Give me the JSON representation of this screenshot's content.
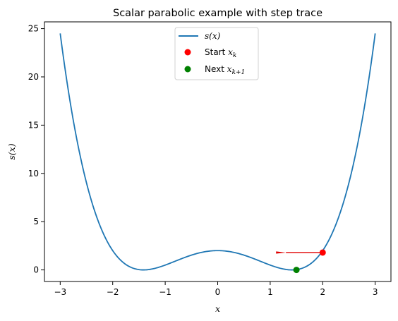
{
  "chart_data": {
    "type": "line",
    "title": "Scalar parabolic example with step trace",
    "xlabel": "x",
    "ylabel": "s(x)",
    "xlim": [
      -3.3,
      3.3
    ],
    "ylim": [
      -1.2,
      25.7
    ],
    "x_ticks": [
      -3,
      -2,
      -1,
      0,
      1,
      2,
      3
    ],
    "y_ticks": [
      0,
      5,
      10,
      15,
      20,
      25
    ],
    "grid": false,
    "legend_position": "top-center",
    "series": [
      {
        "name": "s(x)",
        "kind": "line",
        "color": "#1f77b4",
        "x": [
          -3.0,
          -2.85,
          -2.7,
          -2.55,
          -2.4,
          -2.25,
          -2.1,
          -1.95,
          -1.8,
          -1.65,
          -1.5,
          -1.414,
          -1.35,
          -1.2,
          -1.05,
          -0.9,
          -0.75,
          -0.6,
          -0.45,
          -0.3,
          -0.15,
          0.0,
          0.15,
          0.3,
          0.45,
          0.6,
          0.75,
          0.9,
          1.05,
          1.2,
          1.35,
          1.414,
          1.5,
          1.65,
          1.8,
          1.95,
          2.1,
          2.25,
          2.4,
          2.55,
          2.7,
          2.85,
          3.0
        ],
        "y": [
          24.5,
          19.17,
          14.6,
          10.77,
          7.61,
          5.05,
          3.03,
          1.54,
          0.5,
          0.06,
          0.02,
          0.0,
          0.02,
          0.31,
          0.79,
          1.28,
          1.71,
          2.05,
          2.32,
          2.57,
          2.77,
          2.0,
          2.77,
          2.57,
          2.32,
          2.05,
          1.71,
          1.28,
          0.79,
          0.31,
          0.02,
          0.0,
          0.02,
          0.06,
          0.5,
          1.54,
          3.03,
          5.05,
          7.61,
          10.77,
          14.6,
          19.17,
          24.5
        ]
      },
      {
        "name": "Start x_k",
        "kind": "point",
        "color": "#ff0000",
        "x": [
          2.0
        ],
        "y": [
          1.8
        ]
      },
      {
        "name": "Next x_{k+1}",
        "kind": "point",
        "color": "#008000",
        "x": [
          1.5
        ],
        "y": [
          0.0
        ]
      }
    ],
    "annotations": [
      {
        "kind": "arrow",
        "color": "#e00000",
        "x_start": 2.0,
        "y_start": 1.8,
        "x_end": 1.3,
        "y_end": 1.8
      }
    ],
    "legend": [
      {
        "label": "s(x)",
        "marker": "line",
        "color": "#1f77b4"
      },
      {
        "label": "Start x_k",
        "marker": "dot",
        "color": "#ff0000"
      },
      {
        "label": "Next x_{k+1}",
        "marker": "dot",
        "color": "#008000"
      }
    ]
  },
  "legend_text": {
    "line_label_prefix": "",
    "start_prefix": "Start ",
    "start_var": "x",
    "start_sub": "k",
    "next_prefix": "Next ",
    "next_var": "x",
    "next_sub": "k+1",
    "line_var": "s(x)"
  }
}
